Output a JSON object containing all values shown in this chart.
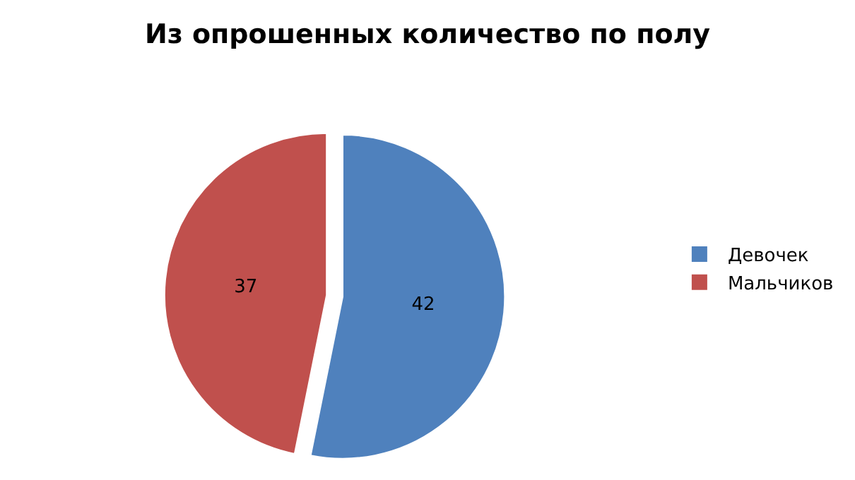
{
  "chart_data": {
    "type": "pie",
    "title": "Из опрошенных количество по полу",
    "categories": [
      "Девочек",
      "Мальчиков"
    ],
    "values": [
      42,
      37
    ],
    "colors": [
      "#4f81bd",
      "#c0504d"
    ],
    "data_labels": true,
    "legend": "right"
  }
}
